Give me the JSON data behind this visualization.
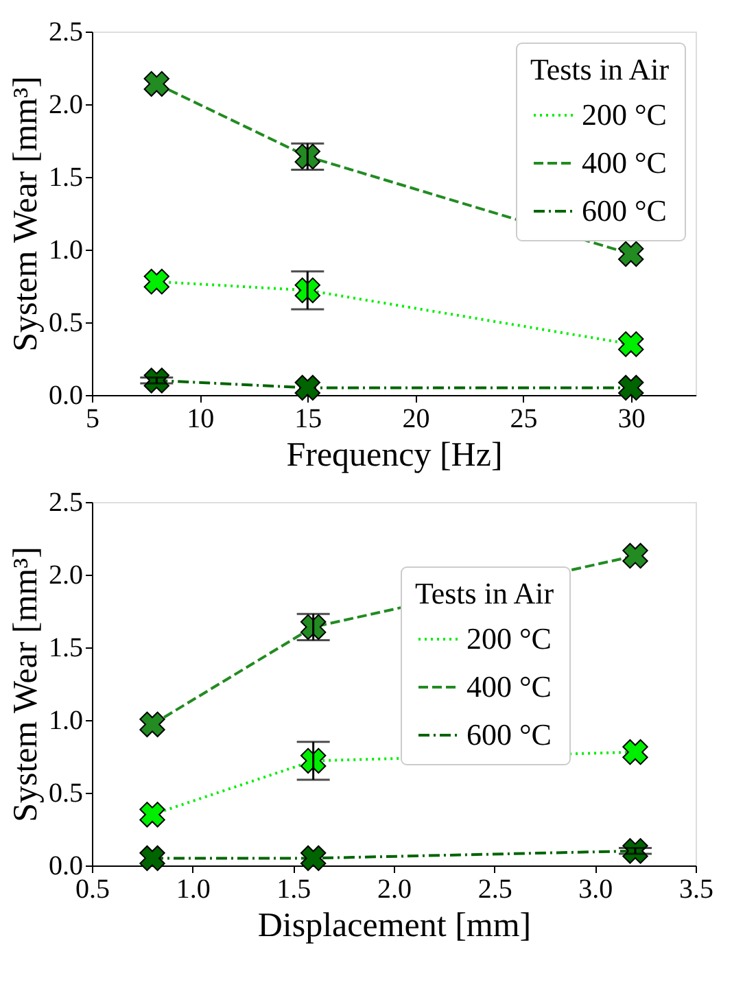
{
  "chart_data": [
    {
      "type": "line",
      "xlabel": "Frequency [Hz]",
      "ylabel": "System Wear [mm³]",
      "legend_title": "Tests in Air",
      "x": [
        8,
        15,
        30
      ],
      "xlim": [
        5,
        33
      ],
      "xticks": [
        5,
        10,
        15,
        20,
        25,
        30
      ],
      "ylim": [
        0,
        2.5
      ],
      "yticks": [
        {
          "value": 0,
          "label": "0.0"
        },
        0.5,
        {
          "value": 1,
          "label": "1.0"
        },
        1.5,
        {
          "value": 2,
          "label": "2.0"
        },
        2.5
      ],
      "grid": false,
      "legend": "top right",
      "marker": "cross",
      "series": [
        {
          "name": "200 °C",
          "color": "#00ee00",
          "line_style": "dotted",
          "values": [
            0.78,
            0.72,
            0.35
          ],
          "errors": [
            null,
            [
              0.59,
              0.85
            ],
            null
          ]
        },
        {
          "name": "400 °C",
          "color": "#228b22",
          "line_style": "dashed",
          "values": [
            2.14,
            1.64,
            0.97
          ],
          "errors": [
            null,
            [
              1.55,
              1.73
            ],
            null
          ]
        },
        {
          "name": "600 °C",
          "color": "#006400",
          "line_style": "dashdot",
          "values": [
            0.1,
            0.05,
            0.05
          ],
          "errors": [
            [
              0.08,
              0.12
            ],
            null,
            null
          ]
        }
      ]
    },
    {
      "type": "line",
      "xlabel": "Displacement [mm]",
      "ylabel": "System Wear [mm³]",
      "legend_title": "Tests in Air",
      "x": [
        0.8,
        1.6,
        3.2
      ],
      "xlim": [
        0.5,
        3.5
      ],
      "xticks": [
        0.5,
        {
          "value": 1,
          "label": "1.0"
        },
        1.5,
        {
          "value": 2,
          "label": "2.0"
        },
        2.5,
        {
          "value": 3,
          "label": "3.0"
        },
        3.5
      ],
      "ylim": [
        0,
        2.5
      ],
      "yticks": [
        {
          "value": 0,
          "label": "0.0"
        },
        0.5,
        {
          "value": 1,
          "label": "1.0"
        },
        1.5,
        {
          "value": 2,
          "label": "2.0"
        },
        2.5
      ],
      "grid": false,
      "legend": "right",
      "marker": "cross",
      "series": [
        {
          "name": "200 °C",
          "color": "#00ee00",
          "line_style": "dotted",
          "values": [
            0.35,
            0.72,
            0.78
          ],
          "errors": [
            null,
            [
              0.59,
              0.85
            ],
            null
          ]
        },
        {
          "name": "400 °C",
          "color": "#228b22",
          "line_style": "dashed",
          "values": [
            0.97,
            1.64,
            2.13
          ],
          "errors": [
            null,
            [
              1.55,
              1.73
            ],
            null
          ]
        },
        {
          "name": "600 °C",
          "color": "#006400",
          "line_style": "dashdot",
          "values": [
            0.05,
            0.05,
            0.1
          ],
          "errors": [
            null,
            null,
            [
              0.08,
              0.12
            ]
          ]
        }
      ]
    }
  ]
}
